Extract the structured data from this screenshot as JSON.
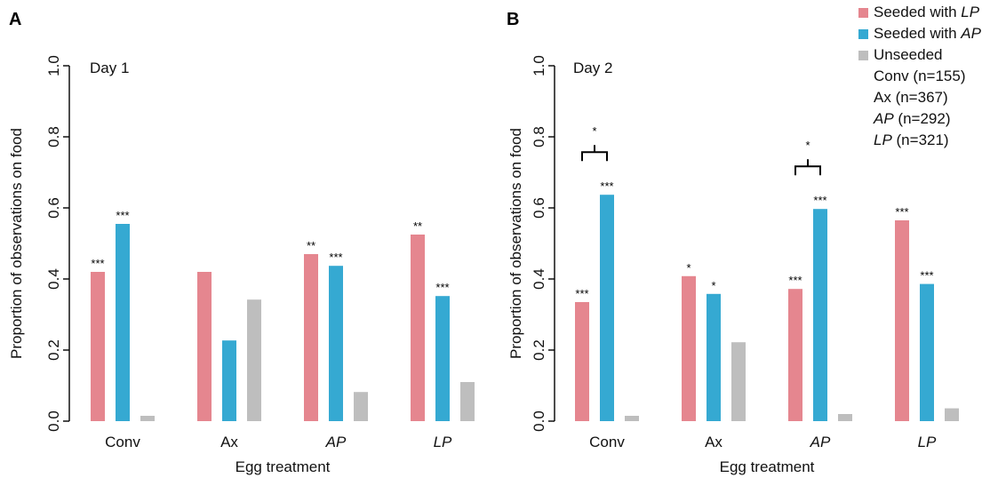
{
  "colors": {
    "seeded_lp": "#e5868f",
    "seeded_ap": "#35a9d2",
    "unseeded": "#bebebe"
  },
  "legend": [
    {
      "prefix": "Seeded with ",
      "em": "LP",
      "color": "#e5868f"
    },
    {
      "prefix": "Seeded with ",
      "em": "AP",
      "color": "#35a9d2"
    },
    {
      "prefix": "Unseeded",
      "em": "",
      "color": "#bebebe"
    }
  ],
  "sample_sizes": [
    {
      "name": "Conv",
      "italic": false,
      "text": " (n=155)"
    },
    {
      "name": "Ax",
      "italic": false,
      "text": " (n=367)"
    },
    {
      "name": "AP",
      "italic": true,
      "text": " (n=292)"
    },
    {
      "name": "LP",
      "italic": true,
      "text": " (n=321)"
    }
  ],
  "chart_data": [
    {
      "type": "bar",
      "panel": "A",
      "annotation": "Day 1",
      "categories": [
        "Conv",
        "Ax",
        "AP",
        "LP"
      ],
      "italic_categories": [
        false,
        false,
        true,
        true
      ],
      "xlabel": "Egg treatment",
      "ylabel": "Proportion of observations on food",
      "ylim": [
        0,
        1.0
      ],
      "yticks": [
        "0.0",
        "0.2",
        "0.4",
        "0.6",
        "0.8",
        "1.0"
      ],
      "series": [
        {
          "name": "Seeded with LP",
          "values": [
            0.42,
            0.42,
            0.47,
            0.525
          ],
          "sig": [
            "***",
            "",
            "**",
            "**"
          ]
        },
        {
          "name": "Seeded with AP",
          "values": [
            0.555,
            0.227,
            0.437,
            0.352
          ],
          "sig": [
            "***",
            "",
            "***",
            "***"
          ]
        },
        {
          "name": "Unseeded",
          "values": [
            0.015,
            0.342,
            0.082,
            0.11
          ],
          "sig": [
            "",
            "",
            "",
            ""
          ]
        }
      ],
      "brackets": []
    },
    {
      "type": "bar",
      "panel": "B",
      "annotation": "Day 2",
      "categories": [
        "Conv",
        "Ax",
        "AP",
        "LP"
      ],
      "italic_categories": [
        false,
        false,
        true,
        true
      ],
      "xlabel": "Egg treatment",
      "ylabel": "Proportion of observations on food",
      "ylim": [
        0,
        1.0
      ],
      "yticks": [
        "0.0",
        "0.2",
        "0.4",
        "0.6",
        "0.8",
        "1.0"
      ],
      "series": [
        {
          "name": "Seeded with LP",
          "values": [
            0.335,
            0.408,
            0.372,
            0.565
          ],
          "sig": [
            "***",
            "*",
            "***",
            "***"
          ]
        },
        {
          "name": "Seeded with AP",
          "values": [
            0.637,
            0.358,
            0.597,
            0.386
          ],
          "sig": [
            "***",
            "*",
            "***",
            "***"
          ]
        },
        {
          "name": "Unseeded",
          "values": [
            0.015,
            0.222,
            0.02,
            0.036
          ],
          "sig": [
            "",
            "",
            "",
            ""
          ]
        }
      ],
      "brackets": [
        {
          "category": 0,
          "label": "*"
        },
        {
          "category": 2,
          "label": "*"
        }
      ]
    }
  ]
}
